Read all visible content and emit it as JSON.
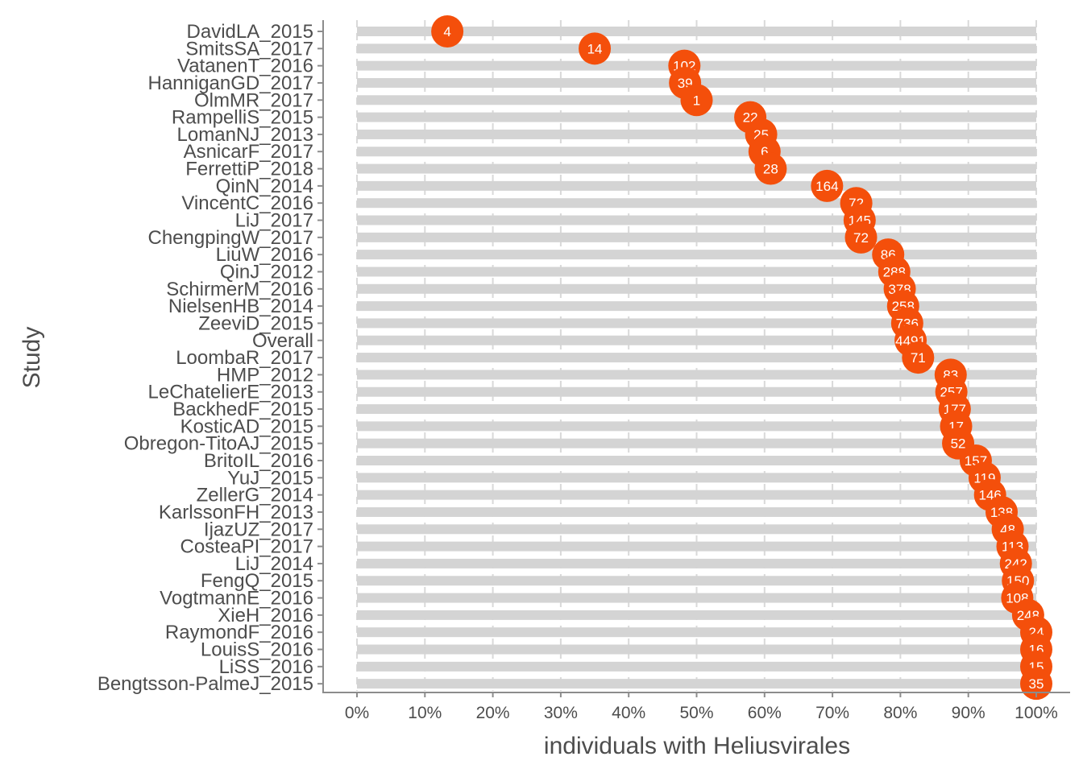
{
  "chart_data": {
    "type": "lollipop",
    "xlabel": "individuals with Heliusvirales",
    "ylabel": "Study",
    "xlim": [
      0,
      100
    ],
    "x_ticks": [
      "0%",
      "10%",
      "20%",
      "30%",
      "40%",
      "50%",
      "60%",
      "70%",
      "80%",
      "90%",
      "100%"
    ],
    "x_tick_values": [
      0,
      10,
      20,
      30,
      40,
      50,
      60,
      70,
      80,
      90,
      100
    ],
    "grid": "vertical dashed",
    "colors": {
      "point": "#f44f0b",
      "bar": "#d4d4d4",
      "grid": "#d9d9d9",
      "axis": "#8c8c8c",
      "text": "#4d4d4d",
      "point_label": "#ffffff"
    },
    "studies": [
      {
        "name": "DavidLA_2015",
        "percent": 13.3,
        "n": "4"
      },
      {
        "name": "SmitsSA_2017",
        "percent": 35.0,
        "n": "14"
      },
      {
        "name": "VatanenT_2016",
        "percent": 48.2,
        "n": "102"
      },
      {
        "name": "HanniganGD_2017",
        "percent": 48.3,
        "n": "39"
      },
      {
        "name": "OlmMR_2017",
        "percent": 50.0,
        "n": "1"
      },
      {
        "name": "RampelliS_2015",
        "percent": 57.9,
        "n": "22"
      },
      {
        "name": "LomanNJ_2013",
        "percent": 59.5,
        "n": "25"
      },
      {
        "name": "AsnicarF_2017",
        "percent": 60.0,
        "n": "6"
      },
      {
        "name": "FerrettiP_2018",
        "percent": 60.9,
        "n": "28"
      },
      {
        "name": "QinN_2014",
        "percent": 69.2,
        "n": "164"
      },
      {
        "name": "VincentC_2016",
        "percent": 73.5,
        "n": "72"
      },
      {
        "name": "LiJ_2017",
        "percent": 74.0,
        "n": "145"
      },
      {
        "name": "ChengpingW_2017",
        "percent": 74.2,
        "n": "72"
      },
      {
        "name": "LiuW_2016",
        "percent": 78.2,
        "n": "86"
      },
      {
        "name": "QinJ_2012",
        "percent": 79.1,
        "n": "288"
      },
      {
        "name": "SchirmerM_2016",
        "percent": 79.9,
        "n": "378"
      },
      {
        "name": "NielsenHB_2014",
        "percent": 80.4,
        "n": "258"
      },
      {
        "name": "ZeeviD_2015",
        "percent": 81.0,
        "n": "736"
      },
      {
        "name": "Overall",
        "percent": 81.5,
        "n": "4491"
      },
      {
        "name": "LoombaR_2017",
        "percent": 82.6,
        "n": "71"
      },
      {
        "name": "HMP_2012",
        "percent": 87.4,
        "n": "83"
      },
      {
        "name": "LeChatelierE_2013",
        "percent": 87.5,
        "n": "257"
      },
      {
        "name": "BackhedF_2015",
        "percent": 88.0,
        "n": "177"
      },
      {
        "name": "KosticAD_2015",
        "percent": 88.2,
        "n": "17"
      },
      {
        "name": "Obregon-TitoAJ_2015",
        "percent": 88.5,
        "n": "52"
      },
      {
        "name": "BritoIL_2016",
        "percent": 91.1,
        "n": "157"
      },
      {
        "name": "YuJ_2015",
        "percent": 92.4,
        "n": "119"
      },
      {
        "name": "ZellerG_2014",
        "percent": 93.2,
        "n": "146"
      },
      {
        "name": "KarlssonFH_2013",
        "percent": 94.9,
        "n": "138"
      },
      {
        "name": "IjazUZ_2017",
        "percent": 95.8,
        "n": "48"
      },
      {
        "name": "CosteaPI_2017",
        "percent": 96.5,
        "n": "113"
      },
      {
        "name": "LiJ_2014",
        "percent": 97.0,
        "n": "242"
      },
      {
        "name": "FengQ_2015",
        "percent": 97.3,
        "n": "150"
      },
      {
        "name": "VogtmannE_2016",
        "percent": 97.2,
        "n": "108"
      },
      {
        "name": "XieH_2016",
        "percent": 98.8,
        "n": "248"
      },
      {
        "name": "RaymondF_2016",
        "percent": 100,
        "n": "24"
      },
      {
        "name": "LouisS_2016",
        "percent": 100,
        "n": "16"
      },
      {
        "name": "LiSS_2016",
        "percent": 100,
        "n": "15"
      },
      {
        "name": "Bengtsson-PalmeJ_2015",
        "percent": 100,
        "n": "35"
      }
    ]
  }
}
